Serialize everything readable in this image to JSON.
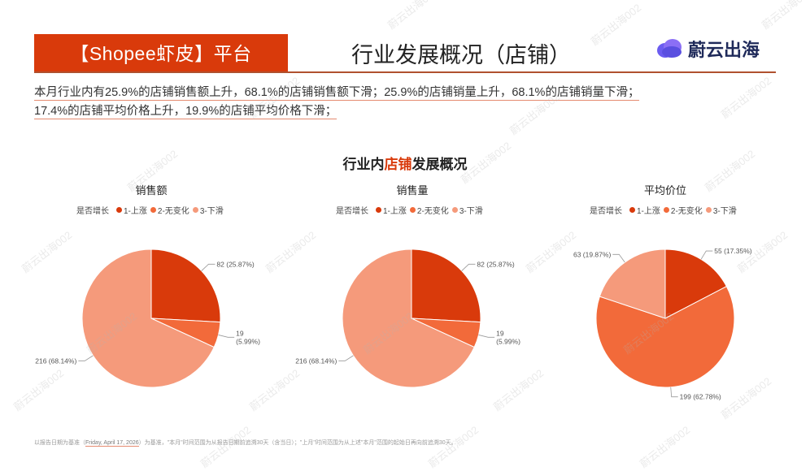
{
  "header": {
    "platform_label": "【Shopee虾皮】平台",
    "page_title": "行业发展概况（店铺）",
    "logo_text": "蔚云出海"
  },
  "summary": {
    "line1": "本月行业内有25.9%的店铺销售额上升，68.1%的店铺销售额下滑；25.9%的店铺销量上升，68.1%的店铺销量下滑；",
    "line2": "17.4%的店铺平均价格上升，19.9%的店铺平均价格下滑；"
  },
  "chart_title": {
    "prefix": "行业内",
    "highlight": "店铺",
    "suffix": "发展概况"
  },
  "legend": {
    "label": "是否增长",
    "items": [
      "1-上涨",
      "2-无变化",
      "3-下滑"
    ],
    "colors": [
      "#d93a0b",
      "#f26a3a",
      "#f59a7b"
    ]
  },
  "chart_data": [
    {
      "type": "pie",
      "title": "销售额",
      "categories": [
        "1-上涨",
        "2-无变化",
        "3-下滑"
      ],
      "values": [
        82,
        19,
        216
      ],
      "labels": [
        "82 (25.87%)",
        "19\n(5.99%)",
        "216 (68.14%)"
      ]
    },
    {
      "type": "pie",
      "title": "销售量",
      "categories": [
        "1-上涨",
        "2-无变化",
        "3-下滑"
      ],
      "values": [
        82,
        19,
        216
      ],
      "labels": [
        "82 (25.87%)",
        "19\n(5.99%)",
        "216 (68.14%)"
      ]
    },
    {
      "type": "pie",
      "title": "平均价位",
      "categories": [
        "1-上涨",
        "2-无变化",
        "3-下滑"
      ],
      "values": [
        55,
        199,
        63
      ],
      "labels": [
        "55 (17.35%)",
        "199 (62.78%)",
        "63 (19.87%)"
      ]
    }
  ],
  "footer": {
    "prefix": "以报告日期为基准（",
    "date": "Friday, April 17, 2026",
    "suffix": "）为基准，\"本月\"时间范围为从报告日期前追溯30天（含当日）；\"上月\"时间范围为从上述\"本月\"范围的起始日再向前追溯30天。"
  },
  "watermark": "蔚云出海002"
}
